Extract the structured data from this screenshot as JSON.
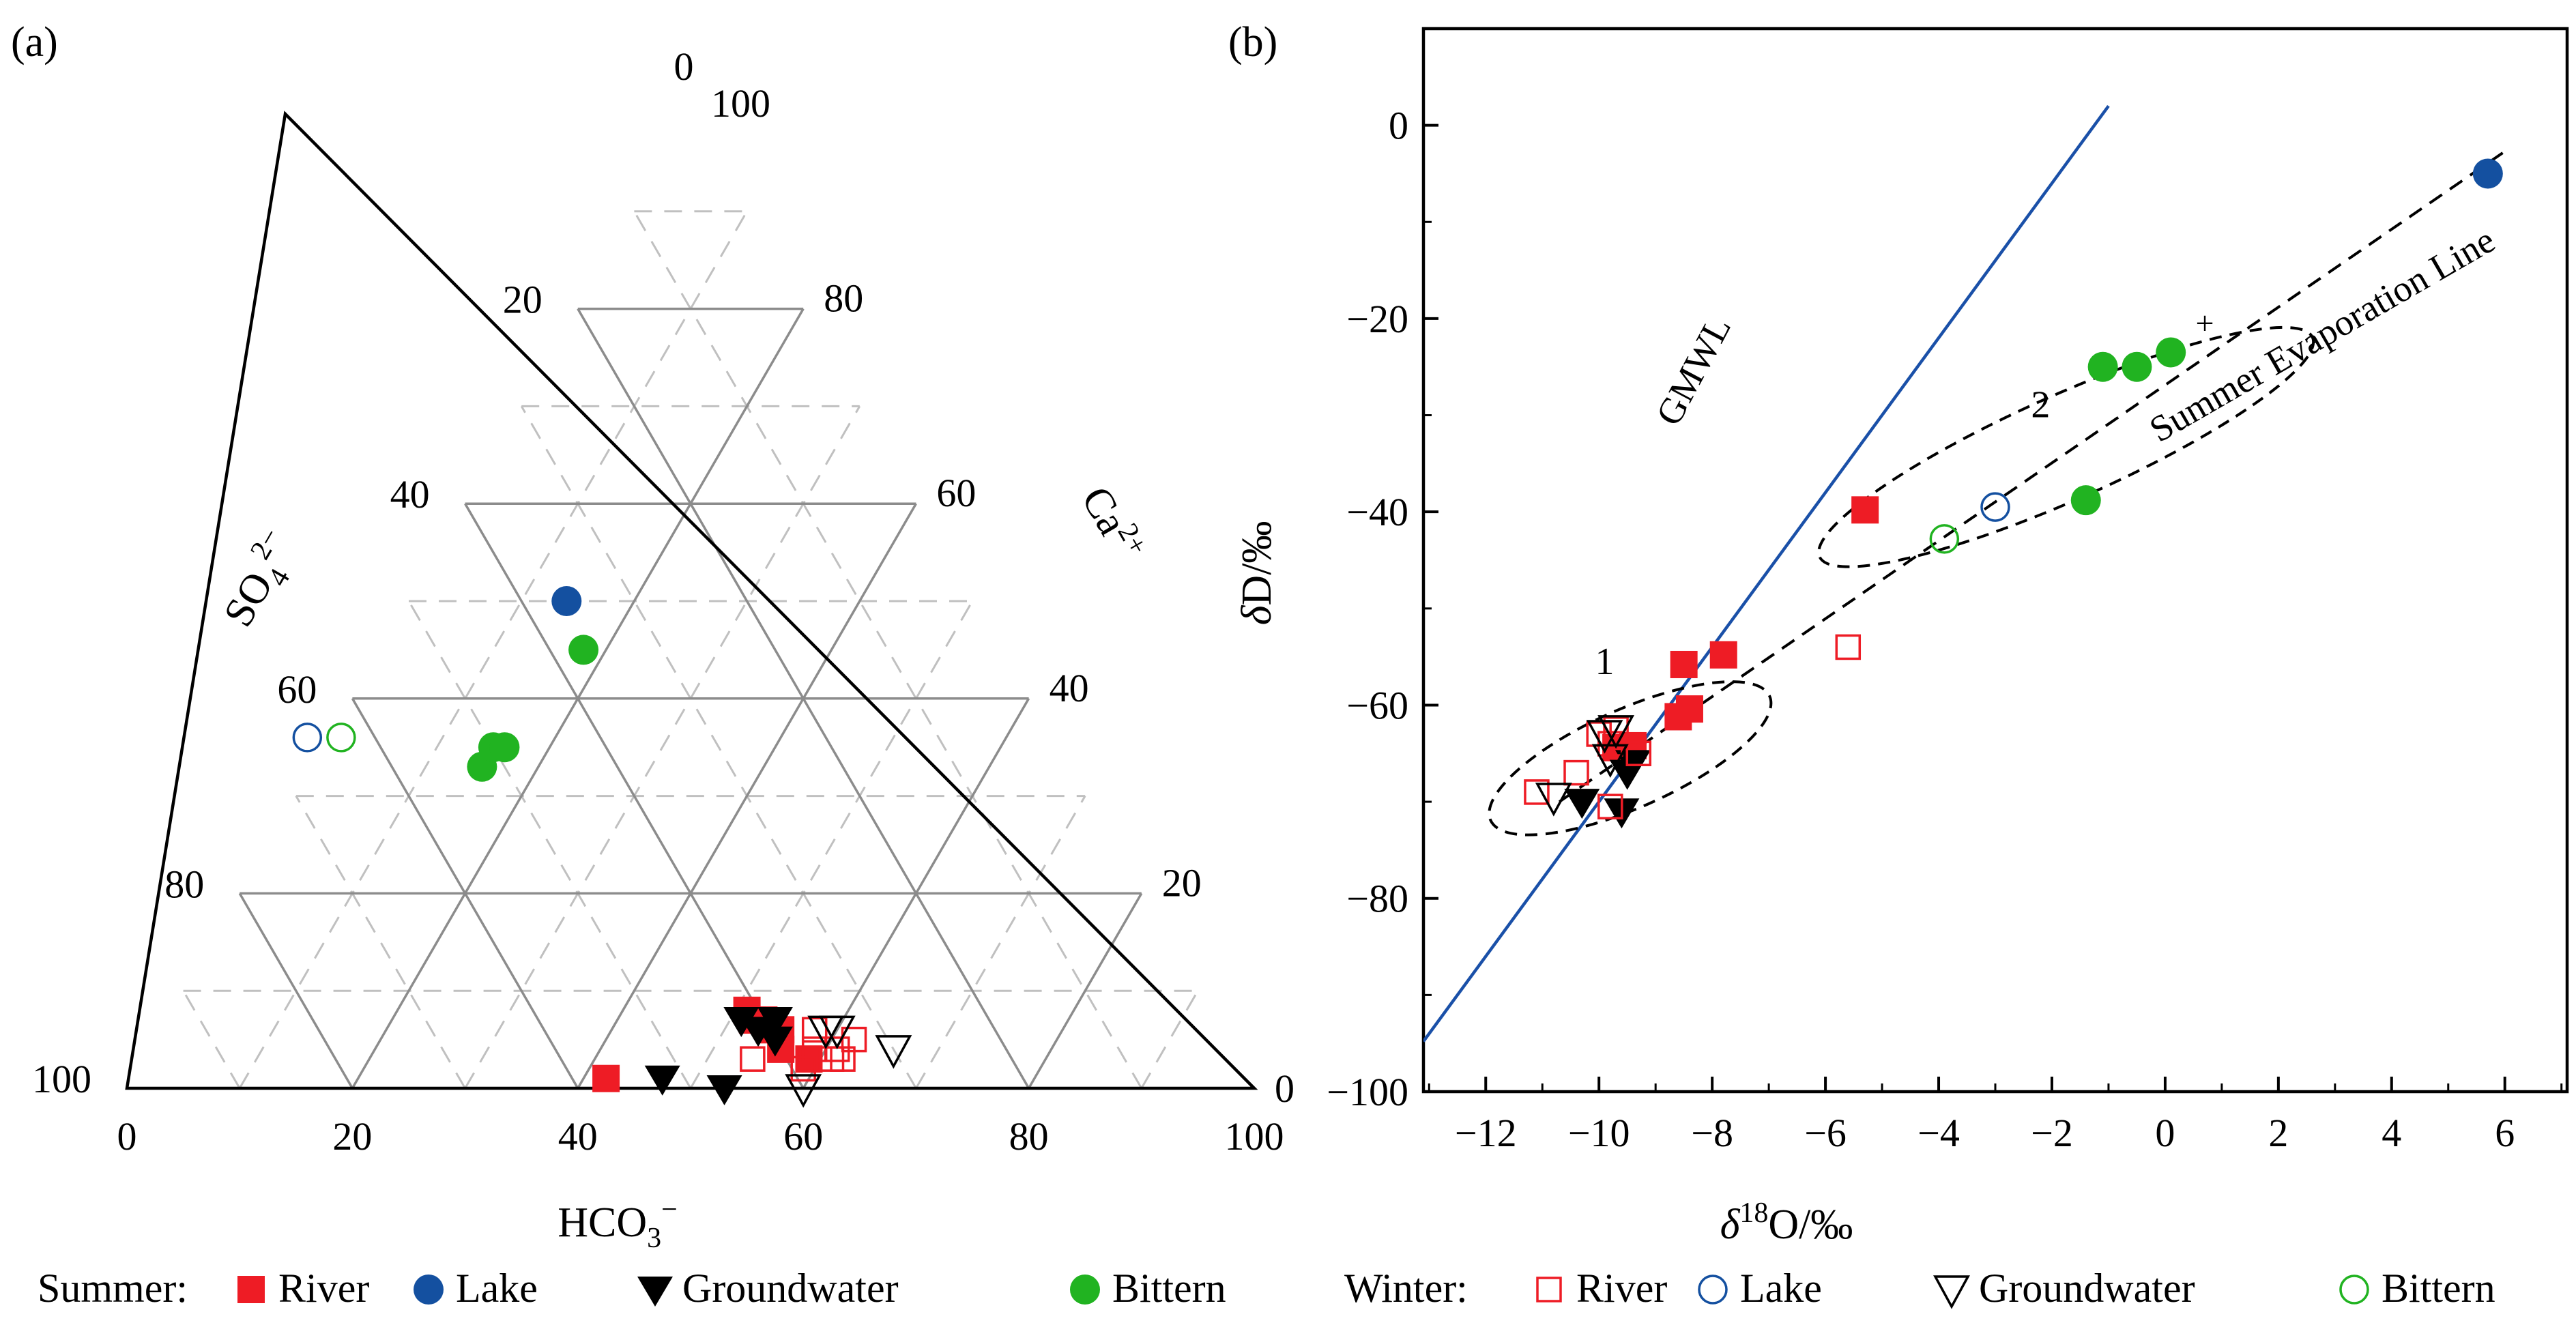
{
  "panel_labels": {
    "a": "(a)",
    "b": "(b)"
  },
  "legend": {
    "summer_label": "Summer:",
    "winter_label": "Winter:",
    "items": [
      {
        "season": "Summer",
        "label": "River",
        "marker": "square-filled"
      },
      {
        "season": "Summer",
        "label": "Lake",
        "marker": "circle-filled"
      },
      {
        "season": "Summer",
        "label": "Groundwater",
        "marker": "triangle-down-filled"
      },
      {
        "season": "Summer",
        "label": "Bittern",
        "marker": "circle-filled"
      },
      {
        "season": "Winter",
        "label": "River",
        "marker": "square-open"
      },
      {
        "season": "Winter",
        "label": "Lake",
        "marker": "circle-open"
      },
      {
        "season": "Winter",
        "label": "Groundwater",
        "marker": "triangle-down-open"
      },
      {
        "season": "Winter",
        "label": "Bittern",
        "marker": "circle-open"
      }
    ]
  },
  "colors": {
    "river": "#ee1c25",
    "lake": "#1450a0",
    "groundwater": "#000000",
    "bittern": "#21b321",
    "gmwl": "#1a50a8",
    "grid_major": "#8c8c8c",
    "grid_minor": "#c0c0c0"
  },
  "chart_data": [
    {
      "type": "ternary",
      "panel": "a",
      "axes": {
        "bottom": {
          "label": "HCO",
          "label_sub": "3",
          "label_sup": "−",
          "ticks": [
            "0",
            "20",
            "40",
            "60",
            "80",
            "100"
          ]
        },
        "left": {
          "label": "SO",
          "label_sub": "4",
          "label_sup": "2−",
          "ticks": [
            "0",
            "20",
            "40",
            "60",
            "80",
            "100"
          ]
        },
        "right": {
          "label": "Ca",
          "label_sup": "2+",
          "ticks": [
            "100",
            "80",
            "60",
            "40",
            "20",
            "0"
          ]
        }
      },
      "components_note": "HCO3- (%), SO4 2- (%), Ca2+ (%)",
      "series": [
        {
          "name": "Summer River",
          "points": [
            [
              51,
              41,
              8
            ],
            [
              52,
              41,
              7
            ],
            [
              54,
              40,
              6
            ],
            [
              55,
              39,
              6
            ],
            [
              53,
              40,
              7
            ],
            [
              56,
              40,
              4
            ],
            [
              59,
              38,
              3
            ],
            [
              42,
              57,
              1
            ]
          ]
        },
        {
          "name": "Summer Lake",
          "points": [
            [
              14,
              36,
              50
            ]
          ]
        },
        {
          "name": "Summer Groundwater",
          "points": [
            [
              51,
              42,
              7
            ],
            [
              53,
              41,
              6
            ],
            [
              54,
              39,
              7
            ],
            [
              55,
              40,
              5
            ],
            [
              47,
              52,
              1
            ],
            [
              53,
              47,
              0
            ]
          ]
        },
        {
          "name": "Summer Bittern",
          "points": [
            [
              15,
              52,
              33
            ],
            [
              15,
              50,
              35
            ],
            [
              16,
              49,
              35
            ],
            [
              18,
              37,
              45
            ]
          ]
        },
        {
          "name": "Winter River",
          "points": [
            [
              54,
              43,
              3
            ],
            [
              59,
              38,
              3
            ],
            [
              58,
              36,
              6
            ],
            [
              61,
              36,
              3
            ],
            [
              59,
              37,
              4
            ],
            [
              62,
              33,
              5
            ],
            [
              59,
              43,
              2
            ],
            [
              61,
              35,
              4
            ],
            [
              62,
              35,
              3
            ]
          ]
        },
        {
          "name": "Winter Lake",
          "points": [
            [
              -2,
              66,
              36
            ]
          ]
        },
        {
          "name": "Winter Groundwater",
          "points": [
            [
              60,
              34,
              6
            ],
            [
              59,
              35,
              6
            ],
            [
              60,
              40,
              0
            ],
            [
              66,
              30,
              4
            ]
          ]
        },
        {
          "name": "Winter Bittern",
          "points": [
            [
              1,
              63,
              36
            ]
          ]
        }
      ]
    },
    {
      "type": "scatter",
      "panel": "b",
      "xlabel": "δ18O/‰",
      "ylabel": "δD/‰",
      "xlim": [
        -13.1,
        7.1
      ],
      "ylim": [
        -100,
        10
      ],
      "xticks": [
        "−12",
        "−10",
        "−8",
        "−6",
        "−4",
        "−2",
        "0",
        "2",
        "4",
        "6"
      ],
      "yticks": [
        "0",
        "−20",
        "−40",
        "−60",
        "−80",
        "−100"
      ],
      "lines": [
        {
          "name": "GMWL",
          "label": "GMWL",
          "style": "solid",
          "x": [
            -13.1,
            -1.0
          ],
          "y": [
            -94.8,
            2.0
          ]
        },
        {
          "name": "Summer Evaporation Line",
          "label": "Summer Evaporation Line",
          "style": "dashed",
          "x": [
            -10.7,
            6.0
          ],
          "y": [
            -70.0,
            -2.7
          ]
        }
      ],
      "ellipses": [
        {
          "label": "1",
          "cx": -9.45,
          "cy": -65.5,
          "rx": 3.0,
          "ry": 6.2,
          "rotate": -24
        },
        {
          "label": "2",
          "cx": -1.75,
          "cy": -33.3,
          "rx": 5.3,
          "ry": 6.6,
          "rotate": -24
        }
      ],
      "series": [
        {
          "name": "Summer River",
          "points": [
            [
              -5.3,
              -39.8
            ],
            [
              -8.5,
              -55.8
            ],
            [
              -7.8,
              -54.8
            ],
            [
              -8.4,
              -60.4
            ],
            [
              -8.6,
              -61.2
            ],
            [
              -9.4,
              -64.2
            ],
            [
              -9.7,
              -64.4
            ]
          ]
        },
        {
          "name": "Summer Lake",
          "points": [
            [
              5.7,
              -5.0
            ]
          ]
        },
        {
          "name": "Summer Groundwater",
          "points": [
            [
              -10.3,
              -70.0
            ],
            [
              -9.6,
              -71.0
            ],
            [
              -9.4,
              -66.0
            ],
            [
              -9.5,
              -67.0
            ]
          ]
        },
        {
          "name": "Summer Bittern",
          "points": [
            [
              -1.1,
              -25.0
            ],
            [
              -0.5,
              -25.0
            ],
            [
              0.1,
              -23.5
            ],
            [
              -1.4,
              -38.8
            ]
          ]
        },
        {
          "name": "Winter River",
          "points": [
            [
              -5.6,
              -54.0
            ],
            [
              -10.4,
              -67.0
            ],
            [
              -11.1,
              -69.0
            ],
            [
              -10.0,
              -63.0
            ],
            [
              -9.8,
              -64.0
            ],
            [
              -9.7,
              -62.5
            ],
            [
              -9.8,
              -70.5
            ],
            [
              -9.3,
              -65.0
            ]
          ]
        },
        {
          "name": "Winter Lake",
          "points": [
            [
              -3.0,
              -39.5
            ]
          ]
        },
        {
          "name": "Winter Groundwater",
          "points": [
            [
              -10.8,
              -69.5
            ],
            [
              -9.9,
              -63.0
            ],
            [
              -9.7,
              -62.5
            ],
            [
              -9.8,
              -65.5
            ]
          ]
        },
        {
          "name": "Winter Bittern",
          "points": [
            [
              -3.9,
              -42.8
            ]
          ]
        }
      ]
    }
  ]
}
